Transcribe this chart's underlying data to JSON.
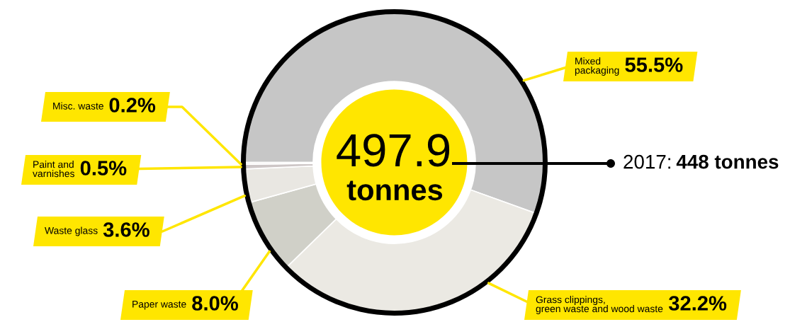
{
  "chart_data": {
    "type": "donut",
    "categories": [
      "Mixed\npackaging",
      "Grass clippings,\ngreen waste and wood waste",
      "Paper waste",
      "Waste glass",
      "Paint and\nvarnishes",
      "Misc. waste"
    ],
    "values": [
      55.5,
      32.2,
      8.0,
      3.6,
      0.5,
      0.2
    ],
    "colors": [
      "#c6c6c6",
      "#ebe9e3",
      "#d0d0c8",
      "#e9e7e2",
      "#cdc6c6",
      "#f2f0ee"
    ],
    "value_labels": [
      "55.5%",
      "32.2%",
      "8.0%",
      "3.6%",
      "0.5%",
      "0.2%"
    ],
    "annotations": [
      "497.9",
      "tonnes",
      "2017:",
      "448 tonnes"
    ]
  }
}
